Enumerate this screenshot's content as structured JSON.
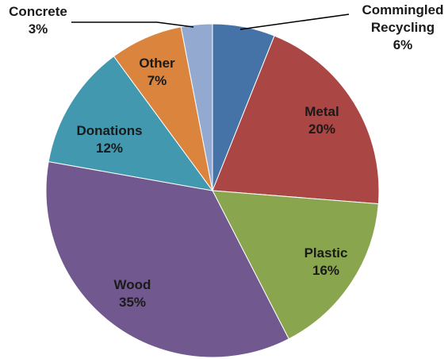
{
  "chart_data": {
    "type": "pie",
    "title": "",
    "slices": [
      {
        "label": "Commingled Recycling",
        "label_lines": [
          "Commingled",
          "Recycling"
        ],
        "pct_label": "6%",
        "value": 6,
        "color": "#4572a7"
      },
      {
        "label": "Metal",
        "label_lines": [
          "Metal"
        ],
        "pct_label": "20%",
        "value": 20,
        "color": "#aa4643"
      },
      {
        "label": "Plastic",
        "label_lines": [
          "Plastic"
        ],
        "pct_label": "16%",
        "value": 16,
        "color": "#89a54e"
      },
      {
        "label": "Wood",
        "label_lines": [
          "Wood"
        ],
        "pct_label": "35%",
        "value": 35,
        "color": "#71588f"
      },
      {
        "label": "Donations",
        "label_lines": [
          "Donations"
        ],
        "pct_label": "12%",
        "value": 12,
        "color": "#4198af"
      },
      {
        "label": "Other",
        "label_lines": [
          "Other"
        ],
        "pct_label": "7%",
        "value": 7,
        "color": "#db843d"
      },
      {
        "label": "Concrete",
        "label_lines": [
          "Concrete"
        ],
        "pct_label": "3%",
        "value": 3,
        "color": "#93a9cf"
      }
    ],
    "start_angle": "12 o'clock",
    "direction": "clockwise",
    "legend": "none"
  }
}
